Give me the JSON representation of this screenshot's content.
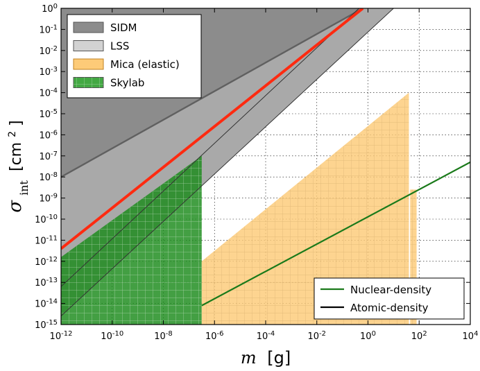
{
  "chart_data": {
    "type": "area",
    "title": "",
    "xlabel_var": "m",
    "xlabel_unit": "[g]",
    "ylabel_var": "σ",
    "ylabel_sub": "int",
    "ylabel_unit": "[cm",
    "ylabel_unit_exp": "2",
    "ylabel_unit_close": "]",
    "xscale": "log",
    "yscale": "log",
    "xlim_exp": [
      -12,
      4
    ],
    "ylim_exp": [
      -15,
      0
    ],
    "x_ticks": [
      {
        "base": "10",
        "exp": "-12",
        "e": -12
      },
      {
        "base": "10",
        "exp": "-10",
        "e": -10
      },
      {
        "base": "10",
        "exp": "-8",
        "e": -8
      },
      {
        "base": "10",
        "exp": "-6",
        "e": -6
      },
      {
        "base": "10",
        "exp": "-4",
        "e": -4
      },
      {
        "base": "10",
        "exp": "-2",
        "e": -2
      },
      {
        "base": "10",
        "exp": "0",
        "e": 0
      },
      {
        "base": "10",
        "exp": "2",
        "e": 2
      },
      {
        "base": "10",
        "exp": "4",
        "e": 4
      }
    ],
    "y_ticks": [
      {
        "base": "10",
        "exp": "0",
        "e": 0
      },
      {
        "base": "10",
        "exp": "-1",
        "e": -1
      },
      {
        "base": "10",
        "exp": "-2",
        "e": -2
      },
      {
        "base": "10",
        "exp": "-3",
        "e": -3
      },
      {
        "base": "10",
        "exp": "-4",
        "e": -4
      },
      {
        "base": "10",
        "exp": "-5",
        "e": -5
      },
      {
        "base": "10",
        "exp": "-6",
        "e": -6
      },
      {
        "base": "10",
        "exp": "-7",
        "e": -7
      },
      {
        "base": "10",
        "exp": "-8",
        "e": -8
      },
      {
        "base": "10",
        "exp": "-9",
        "e": -9
      },
      {
        "base": "10",
        "exp": "-10",
        "e": -10
      },
      {
        "base": "10",
        "exp": "-11",
        "e": -11
      },
      {
        "base": "10",
        "exp": "-12",
        "e": -12
      },
      {
        "base": "10",
        "exp": "-13",
        "e": -13
      },
      {
        "base": "10",
        "exp": "-14",
        "e": -14
      },
      {
        "base": "10",
        "exp": "-15",
        "e": -15
      }
    ],
    "regions": [
      {
        "name": "SIDM",
        "color": "#8c8c8c",
        "opacity": 1.0,
        "polygon": [
          [
            -12,
            -8.0
          ],
          [
            -12,
            0
          ],
          [
            -0.2,
            0
          ]
        ]
      },
      {
        "name": "LSS",
        "color": "#a9a9a9",
        "opacity": 1.0,
        "polygon": [
          [
            -12,
            -14.6
          ],
          [
            -12,
            -8.0
          ],
          [
            -0.2,
            0
          ],
          [
            1.0,
            0
          ]
        ]
      },
      {
        "name": "Skylab",
        "color": "#1a8a1a",
        "opacity": 0.82,
        "hatch": true,
        "polygon": [
          [
            -12,
            -15
          ],
          [
            -12,
            -11.8
          ],
          [
            -6.5,
            -7.0
          ],
          [
            -6.5,
            -15
          ]
        ]
      },
      {
        "name": "Mica (elastic)",
        "color": "#fdcb78",
        "opacity": 0.82,
        "hatch": true,
        "polygon": [
          [
            -6.5,
            -15
          ],
          [
            -6.5,
            -12.0
          ],
          [
            1.6,
            -4.0
          ],
          [
            1.6,
            -15
          ],
          [
            1.65,
            -15
          ],
          [
            1.65,
            -8.6
          ],
          [
            1.9,
            -8.6
          ],
          [
            1.9,
            -15
          ]
        ]
      }
    ],
    "lines": [
      {
        "name": "Nuclear-density",
        "color": "#1a7a1a",
        "width": 2.2,
        "points": [
          [
            -6.5,
            -14.1
          ],
          [
            4,
            -7.3
          ]
        ],
        "legend": true
      },
      {
        "name": "Atomic-density",
        "color": "#000000",
        "width": 2.2,
        "legend": true,
        "points": []
      },
      {
        "name": "atomic-upper",
        "color": "#606060",
        "width": 2.4,
        "legend": false,
        "points": [
          [
            -12,
            -8.0
          ],
          [
            -0.2,
            0
          ]
        ]
      },
      {
        "name": "atomic-middle",
        "color": "#333333",
        "width": 1.0,
        "legend": false,
        "points": [
          [
            -12,
            -13.2
          ],
          [
            -0.35,
            0
          ]
        ]
      },
      {
        "name": "atomic-lower",
        "color": "#333333",
        "width": 1.0,
        "legend": false,
        "points": [
          [
            -12,
            -14.6
          ],
          [
            1.0,
            0
          ]
        ]
      },
      {
        "name": "sidm-bound",
        "color": "#ff2a10",
        "width": 4.0,
        "legend": false,
        "points": [
          [
            -12,
            -11.4
          ],
          [
            -0.2,
            0
          ]
        ]
      }
    ],
    "legend_top": [
      {
        "label": "SIDM",
        "swatch": "#8c8c8c",
        "hatch": false
      },
      {
        "label": "LSS",
        "swatch": "#d2d2d2",
        "hatch": false
      },
      {
        "label": "Mica (elastic)",
        "swatch": "#fdcb78",
        "hatch": false
      },
      {
        "label": "Skylab",
        "swatch": "#43a843",
        "hatch": true
      }
    ],
    "legend_bottom": [
      {
        "label": "Nuclear-density",
        "color": "#1a7a1a"
      },
      {
        "label": "Atomic-density",
        "color": "#000000"
      }
    ],
    "grid": true
  }
}
